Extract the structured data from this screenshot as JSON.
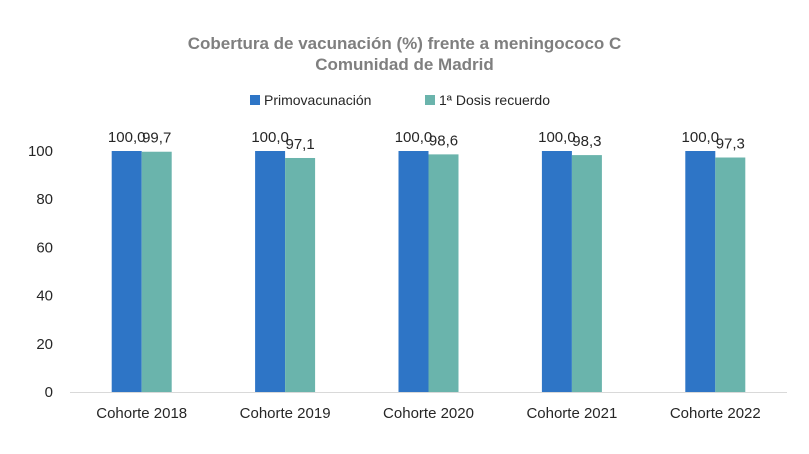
{
  "chart_data": {
    "type": "bar",
    "title": "Cobertura de vacunación (%) frente a meningococo C",
    "subtitle": "Comunidad de Madrid",
    "categories": [
      "Cohorte 2018",
      "Cohorte 2019",
      "Cohorte 2020",
      "Cohorte 2021",
      "Cohorte 2022"
    ],
    "series": [
      {
        "name": "Primovacunación",
        "color": "#2e75c6",
        "values": [
          100.0,
          100.0,
          100.0,
          100.0,
          100.0
        ],
        "labels": [
          "100,0",
          "100,0",
          "100,0",
          "100,0",
          "100,0"
        ]
      },
      {
        "name": "1ª Dosis recuerdo",
        "color": "#6ab4ac",
        "values": [
          99.7,
          97.1,
          98.6,
          98.3,
          97.3
        ],
        "labels": [
          "99,7",
          "97,1",
          "98,6",
          "98,3",
          "97,3"
        ]
      }
    ],
    "ylim": [
      0,
      100
    ],
    "yticks": [
      "0",
      "20",
      "40",
      "60",
      "80",
      "100"
    ],
    "grid": false,
    "legend": "top-center",
    "xlabel": "",
    "ylabel": ""
  }
}
